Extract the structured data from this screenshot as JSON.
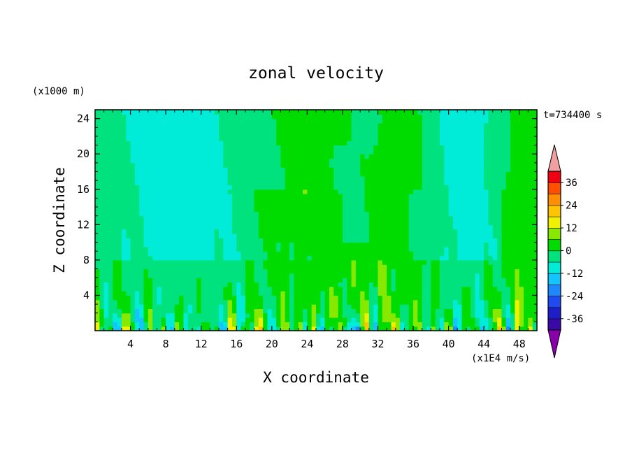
{
  "chart_data": {
    "type": "heatmap",
    "title": "zonal velocity",
    "xlabel": "X coordinate",
    "ylabel": "Z coordinate",
    "x_unit": "(x1000 m)",
    "time_label": "t=734400 s",
    "xlim": [
      0,
      50
    ],
    "ylim": [
      0,
      25
    ],
    "x_ticks": [
      "4",
      "8",
      "12",
      "16",
      "20",
      "24",
      "28",
      "32",
      "36",
      "40",
      "44",
      "48"
    ],
    "y_ticks": [
      "4",
      "8",
      "12",
      "16",
      "20",
      "24"
    ],
    "grid": false,
    "colorbar": {
      "unit": "(x1E4 m/s)",
      "labels": [
        "36",
        "24",
        "12",
        "0",
        "-12",
        "-24",
        "-36"
      ],
      "levels": [
        -42,
        -36,
        -30,
        -24,
        -18,
        -12,
        -6,
        0,
        6,
        12,
        18,
        24,
        30,
        36,
        42
      ],
      "colors": [
        "#8800aa",
        "#3a0aa8",
        "#1e1ec8",
        "#1f4bf0",
        "#1e88ff",
        "#14c4ff",
        "#00ecd8",
        "#00e27e",
        "#00dc00",
        "#88e800",
        "#f0f000",
        "#ffc400",
        "#ff8e00",
        "#ff5000",
        "#f00010",
        "#f0a0a0"
      ]
    }
  }
}
